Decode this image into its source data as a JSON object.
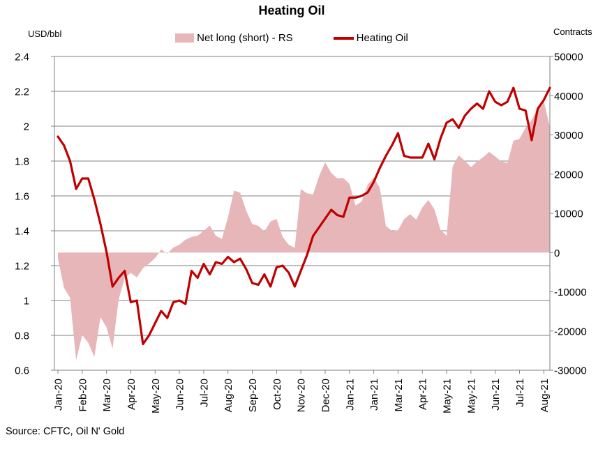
{
  "title": "Heating Oil",
  "legend": {
    "area_label": "Net long (short) - RS",
    "line_label": "Heating Oil"
  },
  "left_axis": {
    "unit": "USD/bbl",
    "tick_labels": [
      "2.4",
      "2.2",
      "2",
      "1.8",
      "1.6",
      "1.4",
      "1.2",
      "1",
      "0.8",
      "0.6"
    ]
  },
  "right_axis": {
    "unit": "Contracts",
    "tick_labels": [
      "50000",
      "40000",
      "30000",
      "20000",
      "10000",
      "0",
      "-10000",
      "-20000",
      "-30000"
    ]
  },
  "source": "Source: CFTC, Oil N' Gold",
  "colors": {
    "line": "#c00000",
    "area": "#e7b6b8",
    "grid": "#808080",
    "text": "#000000"
  },
  "chart_data": {
    "type": "line",
    "title": "Heating Oil",
    "x_tick_labels": [
      "Jan-20",
      "Feb-20",
      "Mar-20",
      "Apr-20",
      "May-20",
      "Jun-20",
      "Jul-20",
      "Aug-20",
      "Sep-20",
      "Oct-20",
      "Nov-20",
      "Dec-20",
      "Jan-21",
      "Jan-21",
      "Mar-21",
      "Apr-21",
      "May-21",
      "May-21",
      "Jun-21",
      "Jul-21",
      "Aug-21"
    ],
    "points_per_tick": 4,
    "ylim_left": [
      0.6,
      2.4
    ],
    "ylim_right": [
      -30000,
      50000
    ],
    "grid": "horizontal",
    "legend_position": "top-center",
    "series": [
      {
        "name": "Net long (short) - RS",
        "type": "area",
        "axis": "right",
        "baseline": 0,
        "values": [
          -1500,
          -9000,
          -11500,
          -27500,
          -21000,
          -23000,
          -26600,
          -16500,
          -19000,
          -24500,
          -12000,
          -6500,
          -5200,
          -6300,
          -4000,
          -2800,
          -1400,
          800,
          -300,
          1300,
          2000,
          3300,
          4000,
          4300,
          5500,
          6900,
          4300,
          3500,
          9000,
          15800,
          15300,
          10700,
          7300,
          6800,
          5400,
          7900,
          8600,
          4000,
          2000,
          1200,
          16200,
          15100,
          14800,
          19500,
          23000,
          20300,
          18900,
          19000,
          17500,
          12000,
          13000,
          17300,
          19100,
          16500,
          6800,
          5500,
          5700,
          8500,
          9800,
          8400,
          11500,
          13400,
          11000,
          5800,
          4300,
          22000,
          24800,
          23400,
          21800,
          23200,
          24300,
          25700,
          24500,
          23200,
          22800,
          28500,
          29000,
          31800,
          33800,
          37000,
          38600,
          32000
        ]
      },
      {
        "name": "Heating Oil",
        "type": "line",
        "axis": "left",
        "values": [
          1.94,
          1.89,
          1.8,
          1.64,
          1.7,
          1.7,
          1.58,
          1.44,
          1.28,
          1.08,
          1.13,
          1.17,
          0.99,
          1.0,
          0.75,
          0.8,
          0.87,
          0.94,
          0.9,
          0.99,
          1.0,
          0.98,
          1.17,
          1.13,
          1.21,
          1.15,
          1.22,
          1.21,
          1.25,
          1.22,
          1.24,
          1.18,
          1.1,
          1.09,
          1.15,
          1.08,
          1.19,
          1.2,
          1.16,
          1.08,
          1.17,
          1.26,
          1.37,
          1.42,
          1.47,
          1.52,
          1.49,
          1.48,
          1.59,
          1.59,
          1.6,
          1.62,
          1.68,
          1.76,
          1.83,
          1.89,
          1.96,
          1.83,
          1.82,
          1.82,
          1.82,
          1.9,
          1.81,
          1.93,
          2.02,
          2.04,
          1.99,
          2.06,
          2.1,
          2.13,
          2.1,
          2.2,
          2.14,
          2.12,
          2.14,
          2.22,
          2.1,
          2.09,
          1.92,
          2.1,
          2.15,
          2.22
        ]
      }
    ]
  }
}
